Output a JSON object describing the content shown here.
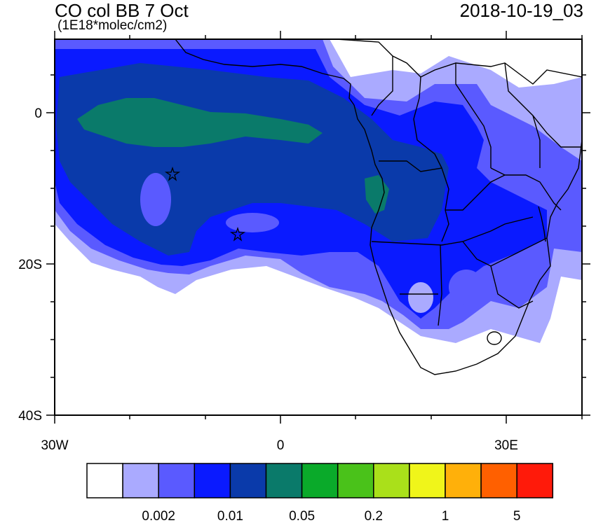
{
  "header": {
    "title": "CO col BB 7 Oct",
    "units": "(1E18*molec/cm2)",
    "timestamp": "2018-10-19_03"
  },
  "axes": {
    "lat_labels": [
      "0",
      "20S",
      "40S"
    ],
    "lon_labels": [
      "30W",
      "0",
      "30E"
    ]
  },
  "colorbar": {
    "colors": [
      "#ffffff",
      "#aaaaff",
      "#5a5aff",
      "#0a1aff",
      "#0a3aaa",
      "#0a7a6a",
      "#0aaa2a",
      "#4ac21a",
      "#aae01a",
      "#f0f51a",
      "#ffb00a",
      "#ff6000",
      "#ff1a0a"
    ],
    "labels": [
      "0.002",
      "0.01",
      "0.05",
      "0.2",
      "1",
      "5"
    ]
  },
  "markers": {
    "symbol": "star",
    "count": 2
  }
}
